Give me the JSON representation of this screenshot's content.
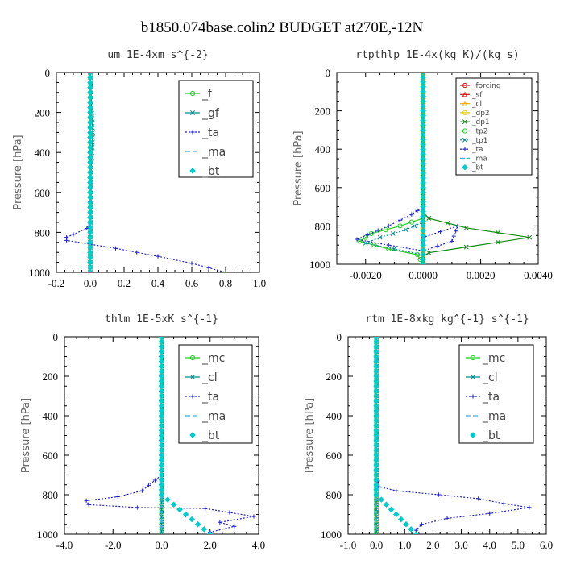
{
  "title": "b1850.074base.colin2  BUDGET at270E,-12N",
  "colors": {
    "green": "#22cc22",
    "teal": "#008c8c",
    "blue": "#2222cc",
    "cyan_dash": "#44aadd",
    "cyan": "#00cccc",
    "red": "#dd1111",
    "orange": "#ffaa00",
    "yellow": "#ddcc00",
    "dark_green": "#118811"
  },
  "chart_data": [
    {
      "type": "line",
      "title": "um  1E-4xm s^{-2}",
      "ylabel": "Pressure [hPa]",
      "xlim": [
        -0.2,
        1.0
      ],
      "ylim": [
        1000,
        0
      ],
      "xticks": [
        -0.2,
        0.0,
        0.2,
        0.4,
        0.6,
        0.8,
        1.0
      ],
      "xtick_labels": [
        "-0.2",
        "0.0",
        "0.2",
        "0.4",
        "0.6",
        "0.8",
        "1.0"
      ],
      "yticks": [
        0,
        200,
        400,
        600,
        800,
        1000
      ],
      "ytick_labels": [
        "0",
        "200",
        "400",
        "600",
        "800",
        "1000"
      ],
      "legend_position": "top-right",
      "series": [
        {
          "name": "_f",
          "color": "green",
          "marker": "circle",
          "dash": "solid",
          "x": [
            0.0,
            0.0,
            0.0,
            0.0,
            0.0,
            0.0,
            0.0,
            0.0,
            0.0,
            0.0,
            0.0
          ],
          "y": [
            0,
            100,
            200,
            300,
            400,
            500,
            600,
            700,
            800,
            900,
            1000
          ]
        },
        {
          "name": "_gf",
          "color": "teal",
          "marker": "x",
          "dash": "solid",
          "x": [
            0.0,
            0.005,
            0.01,
            0.015,
            0.01,
            0.005,
            0.005,
            0.005,
            0.0,
            0.0,
            0.0
          ],
          "y": [
            0,
            100,
            230,
            300,
            400,
            500,
            600,
            700,
            800,
            900,
            1000
          ]
        },
        {
          "name": "_ta",
          "color": "blue",
          "marker": "plus",
          "dash": "dotted",
          "x": [
            0.0,
            0.0,
            0.0,
            0.0,
            0.0,
            -0.02,
            -0.1,
            -0.14,
            -0.14,
            0.15,
            0.4,
            0.6,
            0.8
          ],
          "y": [
            0,
            200,
            400,
            600,
            750,
            780,
            810,
            825,
            840,
            880,
            920,
            955,
            1000
          ]
        },
        {
          "name": "_ma",
          "color": "cyan_dash",
          "marker": "none",
          "dash": "dashed",
          "x": [
            0.0,
            0.0,
            0.0,
            0.0,
            0.0,
            0.0
          ],
          "y": [
            0,
            200,
            400,
            600,
            800,
            1000
          ]
        },
        {
          "name": "_bt",
          "color": "cyan",
          "marker": "diamond",
          "dash": "none",
          "x": [
            0.0,
            0.0,
            0.0,
            0.0,
            0.0,
            0.0,
            0.0
          ],
          "y": [
            0,
            150,
            300,
            450,
            600,
            750,
            1000
          ]
        }
      ]
    },
    {
      "type": "line",
      "title": "rtpthlp  1E-4x(kg K)/(kg s)",
      "ylabel": "Pressure [hPa]",
      "xlim": [
        -0.003,
        0.004
      ],
      "ylim": [
        1000,
        0
      ],
      "xticks": [
        -0.002,
        0.0,
        0.002,
        0.004
      ],
      "xtick_labels": [
        "-0.0020",
        "0.0000",
        "0.0020",
        "0.0040"
      ],
      "yticks": [
        0,
        200,
        400,
        600,
        800,
        1000
      ],
      "ytick_labels": [
        "0",
        "200",
        "400",
        "600",
        "800",
        "1000"
      ],
      "legend_position": "top-right",
      "legend_small": true,
      "series": [
        {
          "name": "_forcing",
          "color": "red",
          "marker": "circle",
          "dash": "solid",
          "x": [
            0.0,
            0.0
          ],
          "y": [
            0,
            1000
          ]
        },
        {
          "name": "_sf",
          "color": "red",
          "marker": "triangle",
          "dash": "solid",
          "x": [
            0.0,
            0.0
          ],
          "y": [
            0,
            1000
          ]
        },
        {
          "name": "_cl",
          "color": "orange",
          "marker": "triangle",
          "dash": "solid",
          "x": [
            0.0,
            0.0
          ],
          "y": [
            0,
            1000
          ]
        },
        {
          "name": "_dp2",
          "color": "yellow",
          "marker": "circle",
          "dash": "solid",
          "x": [
            0.0,
            0.0
          ],
          "y": [
            0,
            1000
          ]
        },
        {
          "name": "_dp1",
          "color": "dark_green",
          "marker": "x",
          "dash": "solid",
          "x": [
            0.0,
            0.0,
            0.0002,
            0.0015,
            0.0037,
            0.0015,
            0.0002,
            0.0,
            0.0
          ],
          "y": [
            0,
            730,
            760,
            810,
            860,
            910,
            940,
            960,
            1000
          ]
        },
        {
          "name": "_tp2",
          "color": "green",
          "marker": "circle",
          "dash": "solid",
          "x": [
            0.0,
            0.0,
            -0.0008,
            -0.0018,
            -0.0022,
            -0.0012,
            -0.0002,
            0.0
          ],
          "y": [
            0,
            760,
            800,
            840,
            880,
            920,
            950,
            1000
          ]
        },
        {
          "name": "_tp1",
          "color": "teal",
          "marker": "x",
          "dash": "dotted",
          "x": [
            0.0,
            0.0,
            -0.0006,
            -0.0015,
            -0.002,
            -0.001,
            0.0,
            0.0
          ],
          "y": [
            0,
            780,
            820,
            860,
            890,
            920,
            950,
            1000
          ]
        },
        {
          "name": "_ta",
          "color": "blue",
          "marker": "plus",
          "dash": "dotted",
          "x": [
            0.0,
            0.0,
            -0.0004,
            -0.0012,
            -0.0023,
            -0.0012,
            0.0,
            0.001,
            0.0012,
            0.0,
            0.0
          ],
          "y": [
            0,
            700,
            740,
            800,
            870,
            900,
            930,
            880,
            800,
            860,
            1000
          ]
        },
        {
          "name": "_ma",
          "color": "cyan_dash",
          "marker": "none",
          "dash": "dashed",
          "x": [
            0.0,
            0.0
          ],
          "y": [
            0,
            1000
          ]
        },
        {
          "name": "_bt",
          "color": "cyan",
          "marker": "diamond",
          "dash": "none",
          "x": [
            0.0,
            0.0,
            0.0,
            0.0
          ],
          "y": [
            0,
            300,
            600,
            1000
          ]
        }
      ]
    },
    {
      "type": "line",
      "title": "thlm  1E-5xK s^{-1}",
      "ylabel": "Pressure [hPa]",
      "xlim": [
        -4.0,
        4.0
      ],
      "ylim": [
        1000,
        0
      ],
      "xticks": [
        -4.0,
        -2.0,
        0.0,
        2.0,
        4.0
      ],
      "xtick_labels": [
        "-4.0",
        "-2.0",
        "0.0",
        "2.0",
        "4.0"
      ],
      "yticks": [
        0,
        200,
        400,
        600,
        800,
        1000
      ],
      "ytick_labels": [
        "0",
        "200",
        "400",
        "600",
        "800",
        "1000"
      ],
      "legend_position": "top-right",
      "series": [
        {
          "name": "_mc",
          "color": "green",
          "marker": "circle",
          "dash": "solid",
          "x": [
            0.0,
            0.0,
            0.0,
            0.0,
            0.0,
            0.0,
            0.0,
            0.0,
            0.0,
            0.0,
            0.0
          ],
          "y": [
            0,
            100,
            200,
            300,
            400,
            500,
            600,
            700,
            800,
            900,
            1000
          ]
        },
        {
          "name": "_cl",
          "color": "teal",
          "marker": "x",
          "dash": "solid",
          "x": [
            0.0,
            0.0,
            0.0,
            0.0,
            0.0,
            0.0,
            0.0
          ],
          "y": [
            0,
            200,
            400,
            600,
            800,
            900,
            1000
          ]
        },
        {
          "name": "_ta",
          "color": "blue",
          "marker": "plus",
          "dash": "dotted",
          "x": [
            0.0,
            0.0,
            0.0,
            -0.8,
            -1.8,
            -3.1,
            -3.0,
            -1.0,
            1.8,
            3.8,
            2.4,
            3.0,
            2.0,
            2.0
          ],
          "y": [
            0,
            200,
            700,
            780,
            810,
            830,
            850,
            865,
            870,
            910,
            940,
            960,
            990,
            1000
          ]
        },
        {
          "name": "_ma",
          "color": "cyan_dash",
          "marker": "none",
          "dash": "dashed",
          "x": [
            0.0,
            0.0,
            0.0
          ],
          "y": [
            0,
            500,
            1000
          ]
        },
        {
          "name": "_bt",
          "color": "cyan",
          "marker": "diamond",
          "dash": "none",
          "x": [
            0.0,
            0.0,
            0.0,
            0.0,
            0.0,
            2.0
          ],
          "y": [
            0,
            200,
            400,
            600,
            800,
            1000
          ]
        }
      ]
    },
    {
      "type": "line",
      "title": "rtm  1E-8xkg kg^{-1} s^{-1}",
      "ylabel": "Pressure [hPa]",
      "xlim": [
        -1.0,
        6.0
      ],
      "ylim": [
        1000,
        0
      ],
      "xticks": [
        -1.0,
        0.0,
        1.0,
        2.0,
        3.0,
        4.0,
        5.0,
        6.0
      ],
      "xtick_labels": [
        "-1.0",
        "0.0",
        "1.0",
        "2.0",
        "3.0",
        "4.0",
        "5.0",
        "6.0"
      ],
      "yticks": [
        0,
        200,
        400,
        600,
        800,
        1000
      ],
      "ytick_labels": [
        "0",
        "200",
        "400",
        "600",
        "800",
        "1000"
      ],
      "legend_position": "top-right",
      "series": [
        {
          "name": "_mc",
          "color": "green",
          "marker": "circle",
          "dash": "solid",
          "x": [
            0.0,
            0.0,
            0.0,
            0.0,
            0.0,
            0.0,
            0.0,
            0.0,
            0.0,
            0.0,
            0.0
          ],
          "y": [
            0,
            100,
            200,
            300,
            400,
            500,
            600,
            700,
            800,
            900,
            1000
          ]
        },
        {
          "name": "_cl",
          "color": "teal",
          "marker": "x",
          "dash": "solid",
          "x": [
            0.0,
            0.0,
            0.0,
            0.0,
            0.0,
            0.0
          ],
          "y": [
            0,
            200,
            400,
            600,
            800,
            1000
          ]
        },
        {
          "name": "_ta",
          "color": "blue",
          "marker": "plus",
          "dash": "dotted",
          "x": [
            0.0,
            0.0,
            0.0,
            0.1,
            0.7,
            2.2,
            3.6,
            4.5,
            5.4,
            4.0,
            2.5,
            1.6,
            1.4,
            1.4
          ],
          "y": [
            0,
            200,
            700,
            760,
            780,
            800,
            820,
            845,
            865,
            895,
            920,
            950,
            980,
            1000
          ]
        },
        {
          "name": "_ma",
          "color": "cyan_dash",
          "marker": "none",
          "dash": "dashed",
          "x": [
            0.0,
            0.0,
            0.0
          ],
          "y": [
            0,
            500,
            1000
          ]
        },
        {
          "name": "_bt",
          "color": "cyan",
          "marker": "diamond",
          "dash": "none",
          "x": [
            0.0,
            0.0,
            0.0,
            0.0,
            0.0,
            1.4
          ],
          "y": [
            0,
            200,
            400,
            600,
            800,
            1000
          ]
        }
      ]
    }
  ]
}
